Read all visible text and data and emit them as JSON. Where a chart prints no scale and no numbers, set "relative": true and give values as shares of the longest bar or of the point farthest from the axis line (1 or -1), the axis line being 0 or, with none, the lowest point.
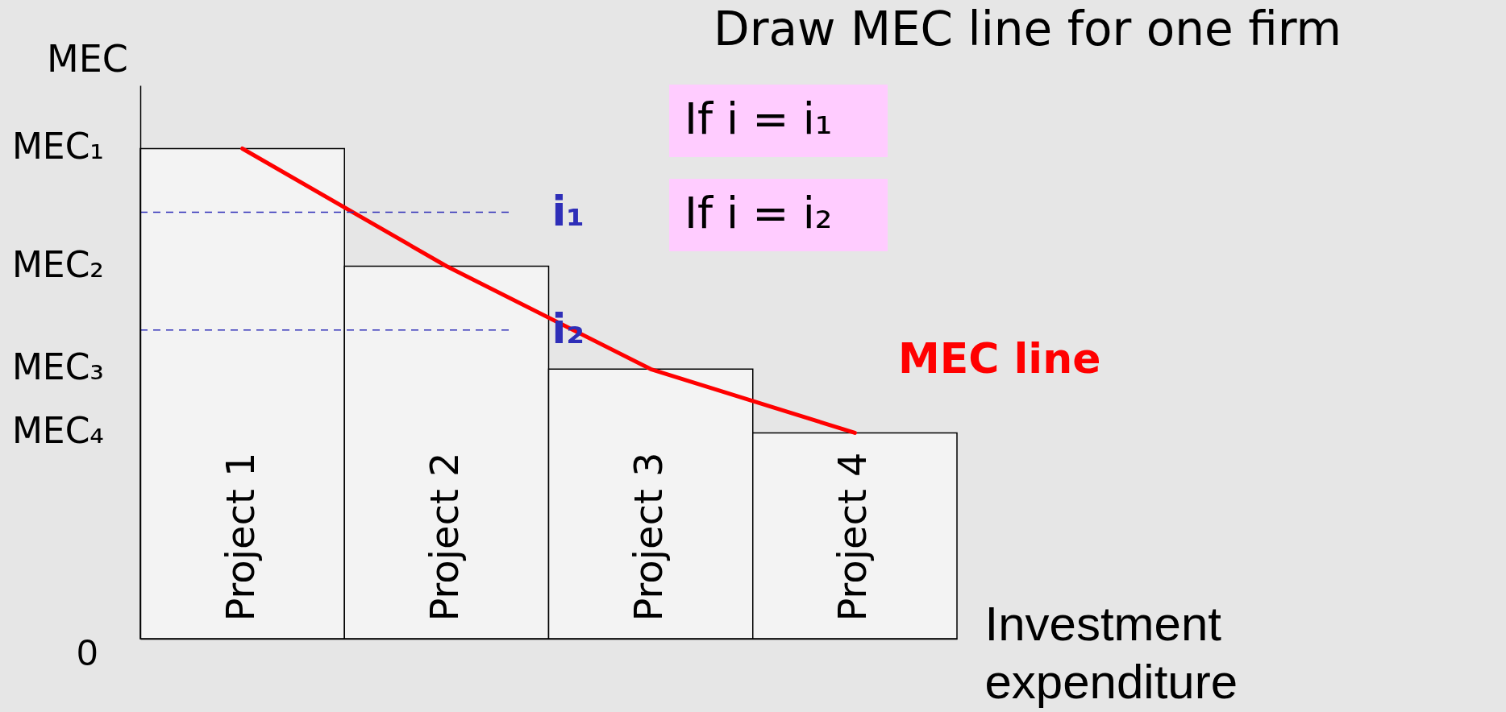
{
  "chart_data": {
    "type": "bar",
    "relative": true,
    "title": "Draw MEC line for one firm",
    "xlabel": "Investment expenditure",
    "ylabel": "MEC",
    "categories": [
      "Project 1",
      "Project 2",
      "Project 3",
      "Project 4"
    ],
    "series": [
      {
        "color": "#f3f3f3",
        "values": [
          1,
          0.76,
          0.55,
          0.42
        ]
      },
      {
        "type": "line",
        "name": "MEC line",
        "color": "#ff0000",
        "values": [
          1,
          0.76,
          0.55,
          0.42
        ]
      }
    ],
    "ref_lines": [
      {
        "axis": "y",
        "value": 0.87,
        "label": "i₁",
        "color": "#2e2eb8",
        "line_style": "dashed"
      },
      {
        "axis": "y",
        "value": 0.63,
        "label": "i₂",
        "color": "#2e2eb8",
        "line_style": "dashed"
      }
    ],
    "annotations": [
      "MEC₁",
      "MEC₂",
      "MEC₃",
      "MEC₄",
      "0",
      "If i = i₁",
      "If i = i₂"
    ]
  }
}
